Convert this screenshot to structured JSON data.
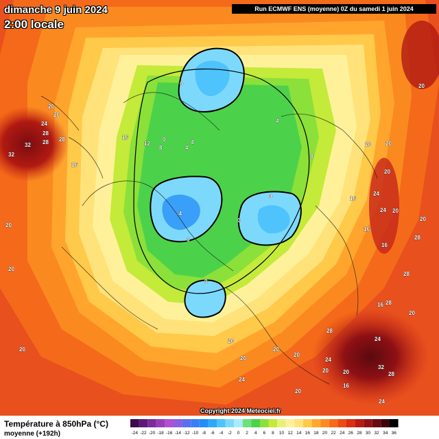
{
  "header": {
    "date_title": "dimanche 9 juin 2024",
    "time_title": "2:00 locale",
    "run_info": "Run ECMWF ENS (moyenne) 0Z du samedi 1 juin 2024"
  },
  "copyright": "Copyright 2024 Meteociel.fr",
  "footer": {
    "field_title": "Température à 850hPa (°C)",
    "field_subtitle": "moyenne   (+192h)"
  },
  "legend": {
    "ticks": [
      "-24",
      "-22",
      "-20",
      "-18",
      "-16",
      "-14",
      "-12",
      "-10",
      "-8",
      "-6",
      "-4",
      "-2",
      "0",
      "2",
      "4",
      "6",
      "8",
      "10",
      "12",
      "14",
      "16",
      "18",
      "20",
      "22",
      "24",
      "26",
      "28",
      "30",
      "32",
      "34",
      "36"
    ],
    "colors": [
      "#3d0a52",
      "#5c1a78",
      "#7d2a9a",
      "#9a3cb8",
      "#b24fd0",
      "#8a5fe0",
      "#5a6ff0",
      "#3a7ff5",
      "#1f8ff8",
      "#2fa8fa",
      "#4fc3fb",
      "#7dd9fc",
      "#a8ecfd",
      "#6ee07a",
      "#4cd24a",
      "#8be03a",
      "#c4ea3a",
      "#e9f07a",
      "#fff19a",
      "#ffe27a",
      "#ffc94a",
      "#ffa830",
      "#ff8a1e",
      "#f96a18",
      "#ee4a14",
      "#d92e12",
      "#b81a12",
      "#921014",
      "#6a0a12",
      "#3e0508",
      "#000000"
    ]
  },
  "map_labels": [
    {
      "text": "20"
    },
    {
      "text": "20"
    },
    {
      "text": "24"
    },
    {
      "text": "28"
    },
    {
      "text": "32"
    },
    {
      "text": "28"
    },
    {
      "text": "28"
    },
    {
      "text": "32"
    },
    {
      "text": "16"
    },
    {
      "text": "12"
    },
    {
      "text": "8"
    },
    {
      "text": "4"
    },
    {
      "text": "16"
    },
    {
      "text": "20"
    },
    {
      "text": "20"
    },
    {
      "text": "20"
    },
    {
      "text": "0"
    },
    {
      "text": "0"
    },
    {
      "text": "4"
    },
    {
      "text": "4"
    },
    {
      "text": "8"
    },
    {
      "text": "0"
    },
    {
      "text": "-4"
    },
    {
      "text": "0"
    },
    {
      "text": "0"
    },
    {
      "text": "0"
    },
    {
      "text": "20"
    },
    {
      "text": "16"
    },
    {
      "text": "20"
    },
    {
      "text": "24"
    },
    {
      "text": "24"
    },
    {
      "text": "16"
    },
    {
      "text": "16"
    },
    {
      "text": "20"
    },
    {
      "text": "16"
    },
    {
      "text": "28"
    },
    {
      "text": "20"
    },
    {
      "text": "28"
    },
    {
      "text": "28"
    },
    {
      "text": "20"
    },
    {
      "text": "28"
    },
    {
      "text": "24"
    },
    {
      "text": "20"
    },
    {
      "text": "20"
    },
    {
      "text": "20"
    },
    {
      "text": "20"
    },
    {
      "text": "24"
    },
    {
      "text": "32"
    },
    {
      "text": "28"
    },
    {
      "text": "24"
    },
    {
      "text": "24"
    },
    {
      "text": "20"
    },
    {
      "text": "20"
    },
    {
      "text": "20"
    },
    {
      "text": "16"
    },
    {
      "text": "20"
    },
    {
      "text": "20"
    }
  ]
}
